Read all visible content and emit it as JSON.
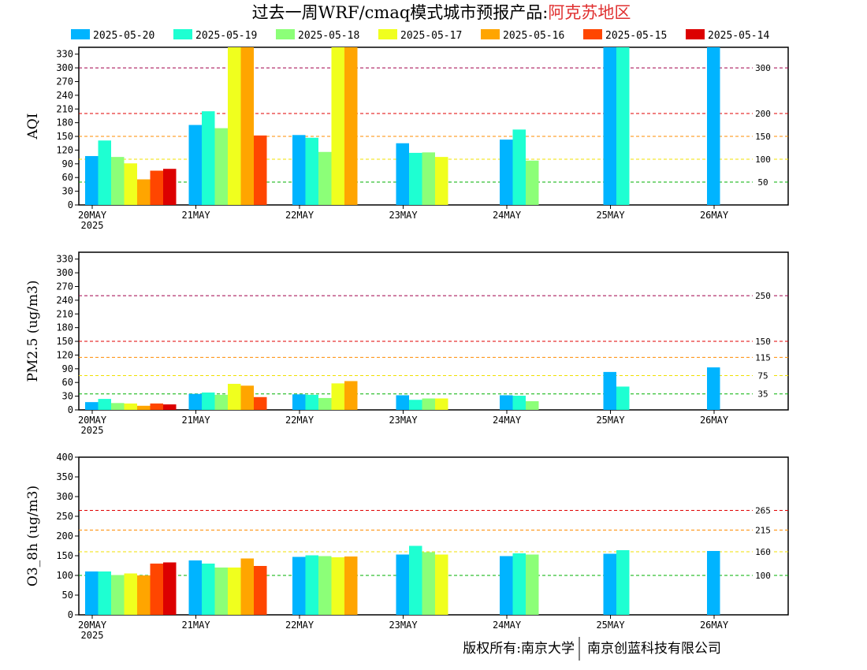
{
  "title": {
    "main": "过去一周WRF/cmaq模式城市预报产品:",
    "region": "阿克苏地区"
  },
  "legend": [
    {
      "label": "2025-05-20",
      "color": "#00b4ff"
    },
    {
      "label": "2025-05-19",
      "color": "#1effd2"
    },
    {
      "label": "2025-05-18",
      "color": "#8cff78"
    },
    {
      "label": "2025-05-17",
      "color": "#f0ff1e"
    },
    {
      "label": "2025-05-16",
      "color": "#ffa500"
    },
    {
      "label": "2025-05-15",
      "color": "#ff4600"
    },
    {
      "label": "2025-05-14",
      "color": "#dc0000"
    }
  ],
  "footer": {
    "left": "版权所有:南京大学",
    "right": "南京创蓝科技有限公司"
  },
  "chart_data": [
    {
      "type": "bar",
      "ylabel": "AQI",
      "ylim": [
        0,
        345
      ],
      "yticks": [
        "0",
        "30",
        "60",
        "90",
        "120",
        "150",
        "180",
        "210",
        "240",
        "270",
        "300",
        "330"
      ],
      "categories": [
        "20MAY",
        "21MAY",
        "22MAY",
        "23MAY",
        "24MAY",
        "25MAY",
        "26MAY"
      ],
      "first_category_year": "2025",
      "thresholds": [
        {
          "value": 300,
          "label": "300",
          "color": "#a0004a"
        },
        {
          "value": 200,
          "label": "200",
          "color": "#e00000"
        },
        {
          "value": 150,
          "label": "150",
          "color": "#ff8c00"
        },
        {
          "value": 100,
          "label": "100",
          "color": "#f0e000"
        },
        {
          "value": 50,
          "label": "50",
          "color": "#00b000"
        }
      ],
      "series": [
        {
          "name": "2025-05-20",
          "values": [
            107,
            175,
            153,
            135,
            143,
            345,
            345
          ]
        },
        {
          "name": "2025-05-19",
          "values": [
            141,
            205,
            147,
            114,
            165,
            345,
            null
          ]
        },
        {
          "name": "2025-05-18",
          "values": [
            105,
            168,
            116,
            115,
            97,
            null,
            null
          ]
        },
        {
          "name": "2025-05-17",
          "values": [
            91,
            345,
            345,
            105,
            null,
            null,
            null
          ]
        },
        {
          "name": "2025-05-16",
          "values": [
            56,
            345,
            345,
            null,
            null,
            null,
            null
          ]
        },
        {
          "name": "2025-05-15",
          "values": [
            75,
            152,
            null,
            null,
            null,
            null,
            null
          ]
        },
        {
          "name": "2025-05-14",
          "values": [
            79,
            null,
            null,
            null,
            null,
            null,
            null
          ]
        }
      ]
    },
    {
      "type": "bar",
      "ylabel": "PM2.5 (ug/m3)",
      "ylim": [
        0,
        345
      ],
      "yticks": [
        "0",
        "30",
        "60",
        "90",
        "120",
        "150",
        "180",
        "210",
        "240",
        "270",
        "300",
        "330"
      ],
      "categories": [
        "20MAY",
        "21MAY",
        "22MAY",
        "23MAY",
        "24MAY",
        "25MAY",
        "26MAY"
      ],
      "first_category_year": "2025",
      "thresholds": [
        {
          "value": 250,
          "label": "250",
          "color": "#a0004a"
        },
        {
          "value": 150,
          "label": "150",
          "color": "#e00000"
        },
        {
          "value": 115,
          "label": "115",
          "color": "#ff8c00"
        },
        {
          "value": 75,
          "label": "75",
          "color": "#f0e000"
        },
        {
          "value": 35,
          "label": "35",
          "color": "#00b000"
        }
      ],
      "series": [
        {
          "name": "2025-05-20",
          "values": [
            17,
            35,
            34,
            32,
            32,
            83,
            93
          ]
        },
        {
          "name": "2025-05-19",
          "values": [
            24,
            38,
            33,
            22,
            31,
            51,
            null
          ]
        },
        {
          "name": "2025-05-18",
          "values": [
            15,
            33,
            26,
            25,
            19,
            null,
            null
          ]
        },
        {
          "name": "2025-05-17",
          "values": [
            14,
            57,
            58,
            25,
            null,
            null,
            null
          ]
        },
        {
          "name": "2025-05-16",
          "values": [
            9,
            53,
            63,
            null,
            null,
            null,
            null
          ]
        },
        {
          "name": "2025-05-15",
          "values": [
            14,
            28,
            null,
            null,
            null,
            null,
            null
          ]
        },
        {
          "name": "2025-05-14",
          "values": [
            12,
            null,
            null,
            null,
            null,
            null,
            null
          ]
        }
      ]
    },
    {
      "type": "bar",
      "ylabel": "O3_8h (ug/m3)",
      "ylim": [
        0,
        400
      ],
      "yticks": [
        "0",
        "50",
        "100",
        "150",
        "200",
        "250",
        "300",
        "350",
        "400"
      ],
      "categories": [
        "20MAY",
        "21MAY",
        "22MAY",
        "23MAY",
        "24MAY",
        "25MAY",
        "26MAY"
      ],
      "first_category_year": "2025",
      "thresholds": [
        {
          "value": 265,
          "label": "265",
          "color": "#e00000"
        },
        {
          "value": 215,
          "label": "215",
          "color": "#ff8c00"
        },
        {
          "value": 160,
          "label": "160",
          "color": "#f0e000"
        },
        {
          "value": 100,
          "label": "100",
          "color": "#00b000"
        }
      ],
      "series": [
        {
          "name": "2025-05-20",
          "values": [
            110,
            138,
            147,
            153,
            149,
            155,
            162
          ]
        },
        {
          "name": "2025-05-19",
          "values": [
            110,
            130,
            151,
            175,
            156,
            164,
            null
          ]
        },
        {
          "name": "2025-05-18",
          "values": [
            101,
            120,
            149,
            159,
            153,
            null,
            null
          ]
        },
        {
          "name": "2025-05-17",
          "values": [
            105,
            120,
            146,
            153,
            null,
            null,
            null
          ]
        },
        {
          "name": "2025-05-16",
          "values": [
            100,
            143,
            148,
            null,
            null,
            null,
            null
          ]
        },
        {
          "name": "2025-05-15",
          "values": [
            130,
            124,
            null,
            null,
            null,
            null,
            null
          ]
        },
        {
          "name": "2025-05-14",
          "values": [
            133,
            null,
            null,
            null,
            null,
            null,
            null
          ]
        }
      ]
    }
  ]
}
